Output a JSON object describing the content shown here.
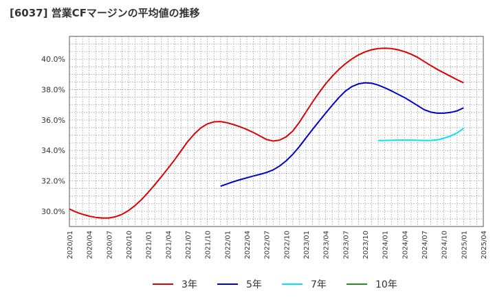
{
  "title": "[6037]  営業CFマージンの平均値の推移",
  "chart_data": {
    "type": "line",
    "title": "[6037]  営業CFマージンの平均値の推移",
    "xlabel": "",
    "ylabel": "",
    "ylim": [
      29.0,
      41.5
    ],
    "y_ticks": [
      30.0,
      32.0,
      34.0,
      36.0,
      38.0,
      40.0
    ],
    "y_tick_labels": [
      "30.0%",
      "32.0%",
      "34.0%",
      "36.0%",
      "38.0%",
      "40.0%"
    ],
    "x_range": [
      "2020-01",
      "2025-04"
    ],
    "x_tick_labels": [
      "2020/01",
      "2020/04",
      "2020/07",
      "2020/10",
      "2021/01",
      "2021/04",
      "2021/07",
      "2021/10",
      "2022/01",
      "2022/04",
      "2022/07",
      "2022/10",
      "2023/01",
      "2023/04",
      "2023/07",
      "2023/10",
      "2024/01",
      "2024/04",
      "2024/07",
      "2024/10",
      "2025/01",
      "2025/04"
    ],
    "grid": true,
    "legend_position": "bottom",
    "series": [
      {
        "name": "3年",
        "color": "#dd0000",
        "x": [
          "2020-01",
          "2020-02",
          "2020-03",
          "2020-04",
          "2020-05",
          "2020-06",
          "2020-07",
          "2020-08",
          "2020-09",
          "2020-10",
          "2020-11",
          "2020-12",
          "2021-01",
          "2021-02",
          "2021-03",
          "2021-04",
          "2021-05",
          "2021-06",
          "2021-07",
          "2021-08",
          "2021-09",
          "2021-10",
          "2021-11",
          "2021-12",
          "2022-01",
          "2022-02",
          "2022-03",
          "2022-04",
          "2022-05",
          "2022-06",
          "2022-07",
          "2022-08",
          "2022-09",
          "2022-10",
          "2022-11",
          "2022-12",
          "2023-01",
          "2023-02",
          "2023-03",
          "2023-04",
          "2023-05",
          "2023-06",
          "2023-07",
          "2023-08",
          "2023-09",
          "2023-10",
          "2023-11",
          "2023-12",
          "2024-01",
          "2024-02",
          "2024-03",
          "2024-04",
          "2024-05",
          "2024-06",
          "2024-07",
          "2024-08",
          "2024-09",
          "2024-10",
          "2024-11",
          "2024-12",
          "2025-01"
        ],
        "values": [
          30.15,
          29.95,
          29.8,
          29.68,
          29.6,
          29.56,
          29.56,
          29.64,
          29.8,
          30.05,
          30.38,
          30.78,
          31.25,
          31.75,
          32.28,
          32.82,
          33.38,
          33.98,
          34.58,
          35.08,
          35.48,
          35.75,
          35.88,
          35.9,
          35.82,
          35.7,
          35.55,
          35.38,
          35.18,
          34.95,
          34.72,
          34.62,
          34.68,
          34.9,
          35.28,
          35.85,
          36.52,
          37.18,
          37.8,
          38.38,
          38.88,
          39.32,
          39.7,
          40.02,
          40.28,
          40.48,
          40.62,
          40.7,
          40.72,
          40.7,
          40.62,
          40.5,
          40.33,
          40.12,
          39.85,
          39.58,
          39.33,
          39.1,
          38.88,
          38.65,
          38.45
        ]
      },
      {
        "name": "5年",
        "color": "#0000cc",
        "x": [
          "2021-12",
          "2022-01",
          "2022-02",
          "2022-03",
          "2022-04",
          "2022-05",
          "2022-06",
          "2022-07",
          "2022-08",
          "2022-09",
          "2022-10",
          "2022-11",
          "2022-12",
          "2023-01",
          "2023-02",
          "2023-03",
          "2023-04",
          "2023-05",
          "2023-06",
          "2023-07",
          "2023-08",
          "2023-09",
          "2023-10",
          "2023-11",
          "2023-12",
          "2024-01",
          "2024-02",
          "2024-03",
          "2024-04",
          "2024-05",
          "2024-06",
          "2024-07",
          "2024-08",
          "2024-09",
          "2024-10",
          "2024-11",
          "2024-12",
          "2025-01"
        ],
        "values": [
          31.65,
          31.8,
          31.95,
          32.08,
          32.2,
          32.32,
          32.43,
          32.55,
          32.72,
          32.98,
          33.32,
          33.75,
          34.25,
          34.82,
          35.38,
          35.92,
          36.45,
          36.97,
          37.47,
          37.9,
          38.2,
          38.38,
          38.45,
          38.42,
          38.3,
          38.12,
          37.92,
          37.7,
          37.48,
          37.22,
          36.95,
          36.68,
          36.52,
          36.45,
          36.45,
          36.5,
          36.6,
          36.8
        ]
      },
      {
        "name": "7年",
        "color": "#00e5ee",
        "x": [
          "2023-12",
          "2024-01",
          "2024-02",
          "2024-03",
          "2024-04",
          "2024-05",
          "2024-06",
          "2024-07",
          "2024-08",
          "2024-09",
          "2024-10",
          "2024-11",
          "2024-12",
          "2025-01"
        ],
        "values": [
          34.65,
          34.66,
          34.67,
          34.68,
          34.68,
          34.68,
          34.67,
          34.66,
          34.66,
          34.7,
          34.8,
          34.95,
          35.15,
          35.45
        ]
      },
      {
        "name": "10年",
        "color": "#228b22",
        "x": [],
        "values": []
      }
    ]
  }
}
